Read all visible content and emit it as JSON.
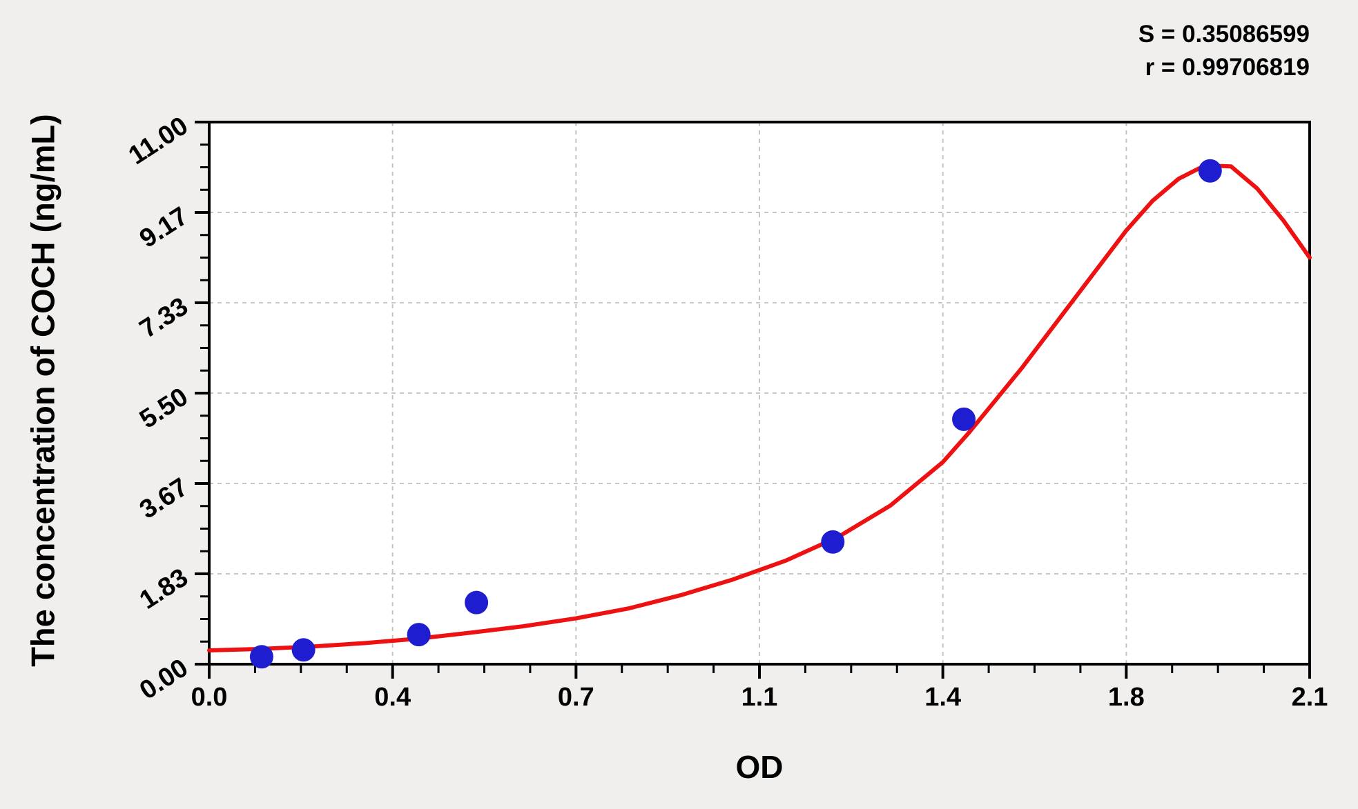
{
  "figure": {
    "stats": {
      "s": "S = 0.35086599",
      "r": "r = 0.99706819"
    },
    "axes": {
      "x_title": "OD",
      "y_title": "The concentration of COCH (ng/mL)",
      "x_tick_labels": [
        "0.0",
        "0.4",
        "0.7",
        "1.1",
        "1.4",
        "1.8",
        "2.1"
      ],
      "y_tick_labels": [
        "0.00",
        "1.83",
        "3.67",
        "5.50",
        "7.33",
        "9.17",
        "11.00"
      ]
    }
  },
  "colors": {
    "page_bg": "#f0efed",
    "plot_bg": "#ffffff",
    "axis": "#000000",
    "grid": "#c6c6c6",
    "curve": "#ee1111",
    "point": "#1e1ed0",
    "text": "#000000"
  },
  "chart_data": {
    "type": "scatter",
    "title": "",
    "xlabel": "OD",
    "ylabel": "The concentration of COCH (ng/mL)",
    "xlim": [
      0,
      2.1
    ],
    "ylim": [
      0,
      11
    ],
    "x_tick_labels": [
      "0.0",
      "0.4",
      "0.7",
      "1.1",
      "1.4",
      "1.8",
      "2.1"
    ],
    "y_tick_labels": [
      "0.00",
      "1.83",
      "3.67",
      "5.50",
      "7.33",
      "9.17",
      "11.00"
    ],
    "minor_ticks_between_majors": 3,
    "grid": "dashed gridlines at interior major ticks, both axes",
    "legend_position": "none",
    "annotations": [
      "S = 0.35086599",
      "r = 0.99706819"
    ],
    "series": [
      {
        "name": "standard points",
        "type": "scatter",
        "x": [
          0.1,
          0.18,
          0.4,
          0.51,
          1.19,
          1.44,
          1.91
        ],
        "y": [
          0.15,
          0.29,
          0.6,
          1.25,
          2.48,
          4.97,
          10.01
        ]
      },
      {
        "name": "fitted curve",
        "type": "line",
        "points": [
          [
            0.0,
            0.28
          ],
          [
            0.1,
            0.31
          ],
          [
            0.2,
            0.36
          ],
          [
            0.3,
            0.43
          ],
          [
            0.4,
            0.52
          ],
          [
            0.5,
            0.64
          ],
          [
            0.6,
            0.77
          ],
          [
            0.7,
            0.93
          ],
          [
            0.8,
            1.13
          ],
          [
            0.9,
            1.4
          ],
          [
            1.0,
            1.72
          ],
          [
            1.1,
            2.1
          ],
          [
            1.2,
            2.58
          ],
          [
            1.3,
            3.22
          ],
          [
            1.4,
            4.1
          ],
          [
            1.45,
            4.7
          ],
          [
            1.5,
            5.35
          ],
          [
            1.55,
            6.0
          ],
          [
            1.6,
            6.7
          ],
          [
            1.65,
            7.4
          ],
          [
            1.7,
            8.1
          ],
          [
            1.75,
            8.8
          ],
          [
            1.8,
            9.4
          ],
          [
            1.85,
            9.85
          ],
          [
            1.9,
            10.12
          ],
          [
            1.95,
            10.1
          ],
          [
            2.0,
            9.65
          ],
          [
            2.05,
            9.0
          ],
          [
            2.1,
            8.25
          ]
        ]
      }
    ]
  }
}
